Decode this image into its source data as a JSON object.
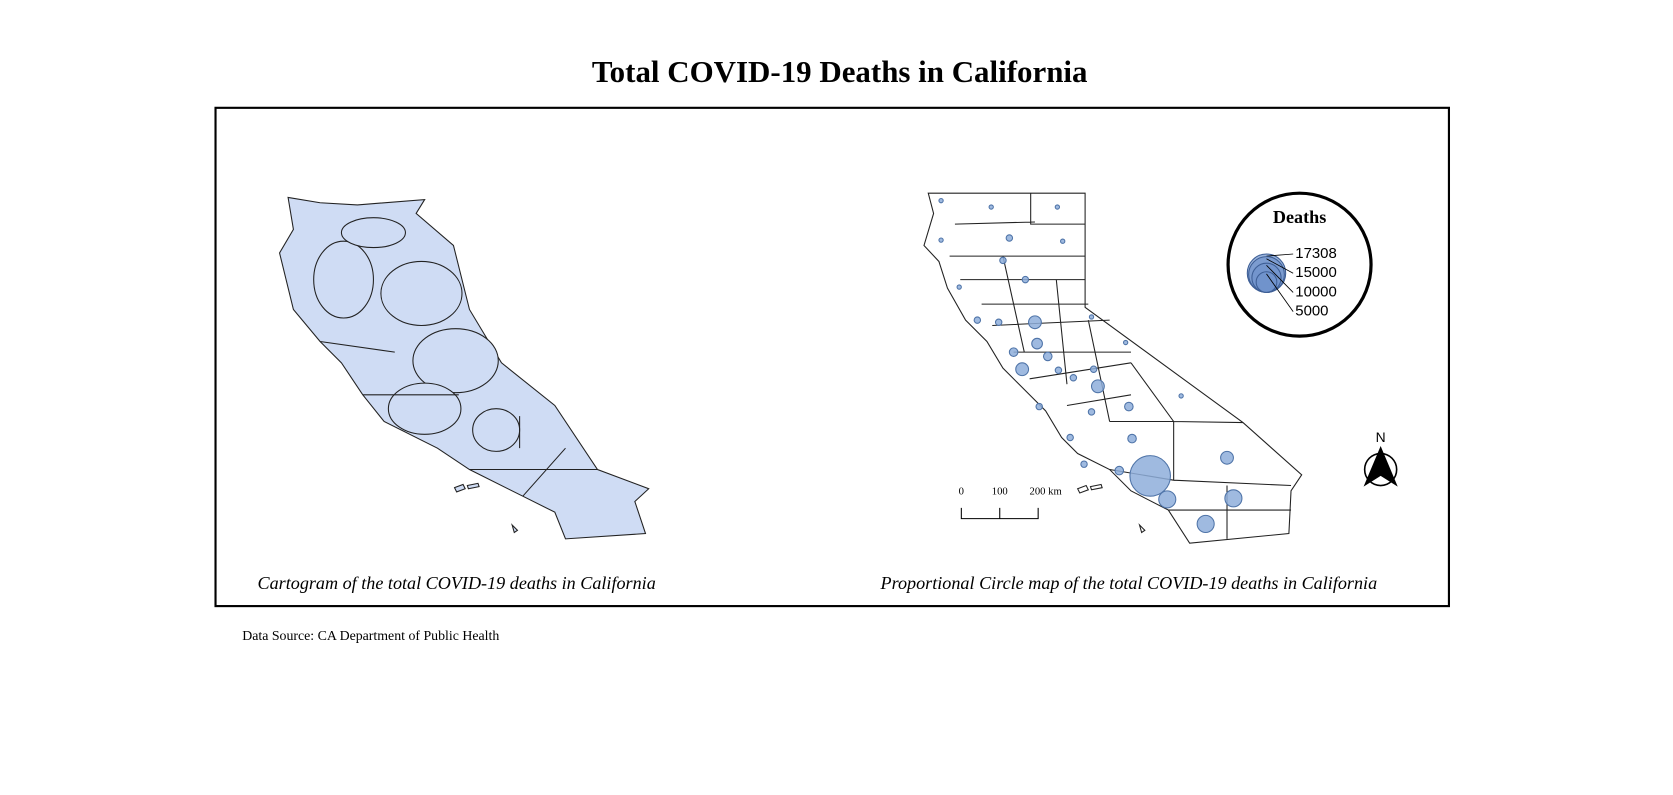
{
  "title": "Total COVID-19 Deaths in California",
  "left_map": {
    "caption": "Cartogram of the total COVID-19 deaths in California"
  },
  "right_map": {
    "caption": "Proportional Circle map of the total COVID-19 deaths in California"
  },
  "legend": {
    "title": "Deaths",
    "values": [
      17308,
      15000,
      10000,
      5000
    ]
  },
  "scale_bar": {
    "labels": [
      "0",
      "100",
      "200 km"
    ]
  },
  "north_arrow": {
    "label": "N"
  },
  "source": "Data Source: CA Department of Public Health"
}
